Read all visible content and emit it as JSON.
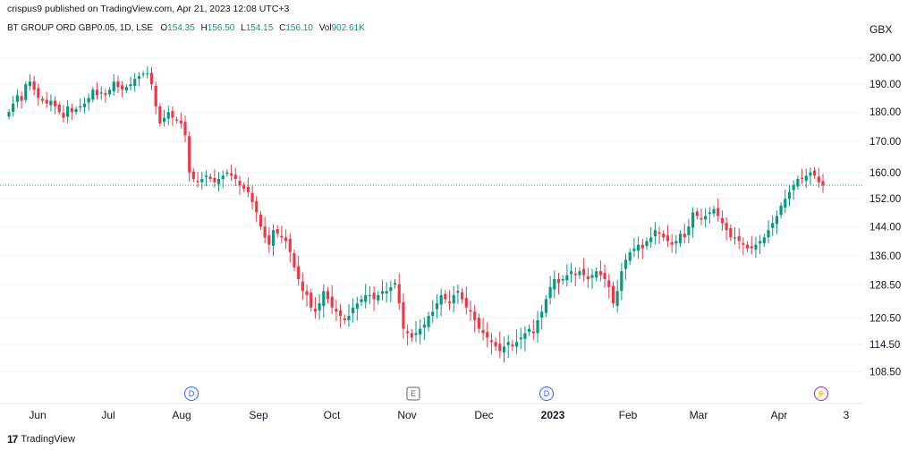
{
  "header": {
    "published_by": "crispus9 published on TradingView.com, Apr 21, 2023 12:08 UTC+3"
  },
  "legend": {
    "symbol": "BT GROUP ORD GBP0.05, 1D, LSE",
    "open_label": "O",
    "open_value": "154.35",
    "high_label": "H",
    "high_value": "156.50",
    "low_label": "L",
    "low_value": "154.15",
    "close_label": "C",
    "close_value": "156.10",
    "vol_label": "Vol",
    "vol_value": "902.61K"
  },
  "footer": {
    "brand": "TradingView",
    "logo": "17"
  },
  "colors": {
    "up": "#089981",
    "down": "#f23645",
    "grid": "#f0f3fa",
    "last_price": "#089981"
  },
  "chart_data": {
    "type": "candlestick",
    "currency": "GBX",
    "y_ticks": [
      200.0,
      190.0,
      180.0,
      170.0,
      160.0,
      152.0,
      144.0,
      136.0,
      128.5,
      120.5,
      114.5,
      108.5
    ],
    "y_tick_labels": [
      "200.00",
      "190.00",
      "180.00",
      "170.00",
      "160.00",
      "152.00",
      "144.00",
      "136.00",
      "128.50",
      "120.50",
      "114.50",
      "108.50"
    ],
    "y_scale": "log",
    "ylim": [
      104,
      207
    ],
    "x_labels": [
      "Jun",
      "Jul",
      "Aug",
      "Sep",
      "Oct",
      "Nov",
      "Dec",
      "2023",
      "Feb",
      "Mar",
      "Apr",
      "3"
    ],
    "last_close": 156.1,
    "events": [
      {
        "label": "D",
        "date": "Aug",
        "type": "dividend"
      },
      {
        "label": "E",
        "date": "Nov",
        "type": "earnings"
      },
      {
        "label": "D",
        "date": "2023",
        "type": "dividend"
      },
      {
        "label": "⚡",
        "date": "Apr",
        "type": "split"
      }
    ],
    "series_close": [
      180,
      183,
      186,
      184,
      190,
      191,
      188,
      185,
      184,
      183,
      184,
      182,
      180,
      178,
      182,
      180,
      181,
      182,
      183,
      185,
      188,
      186,
      187,
      186,
      188,
      191,
      189,
      188,
      189,
      190,
      192,
      193,
      194,
      194,
      190,
      182,
      176,
      178,
      180,
      178,
      177,
      176,
      172,
      160,
      158,
      157,
      158,
      159,
      158,
      157,
      158,
      159,
      160,
      159,
      158,
      156,
      155,
      154,
      151,
      148,
      144,
      141,
      139,
      143,
      142,
      141,
      140,
      137,
      133,
      130,
      127,
      126,
      123,
      122,
      124,
      127,
      125,
      123,
      122,
      121,
      120,
      121,
      123,
      124,
      125,
      126,
      126,
      125,
      126,
      127,
      127,
      128,
      129,
      124,
      118,
      117,
      116,
      117,
      118,
      119,
      121,
      122,
      124,
      126,
      125,
      124,
      126,
      127,
      125,
      123,
      122,
      120,
      118,
      117,
      116,
      115,
      114,
      113,
      114,
      115,
      114,
      115,
      116,
      117,
      118,
      117,
      120,
      122,
      125,
      128,
      130,
      129,
      130,
      131,
      132,
      131,
      132,
      131,
      130,
      131,
      132,
      131,
      130,
      128,
      124,
      127,
      132,
      135,
      137,
      138,
      139,
      138,
      140,
      141,
      143,
      142,
      141,
      140,
      139,
      140,
      142,
      141,
      144,
      148,
      147,
      146,
      147,
      148,
      149,
      147,
      145,
      143,
      141,
      141,
      140,
      139,
      138,
      138,
      139,
      140,
      141,
      143,
      145,
      147,
      150,
      152,
      154,
      156,
      158,
      158,
      159,
      160,
      159,
      157,
      156
    ],
    "date_range": "Jun 2022 – Apr 2023"
  }
}
